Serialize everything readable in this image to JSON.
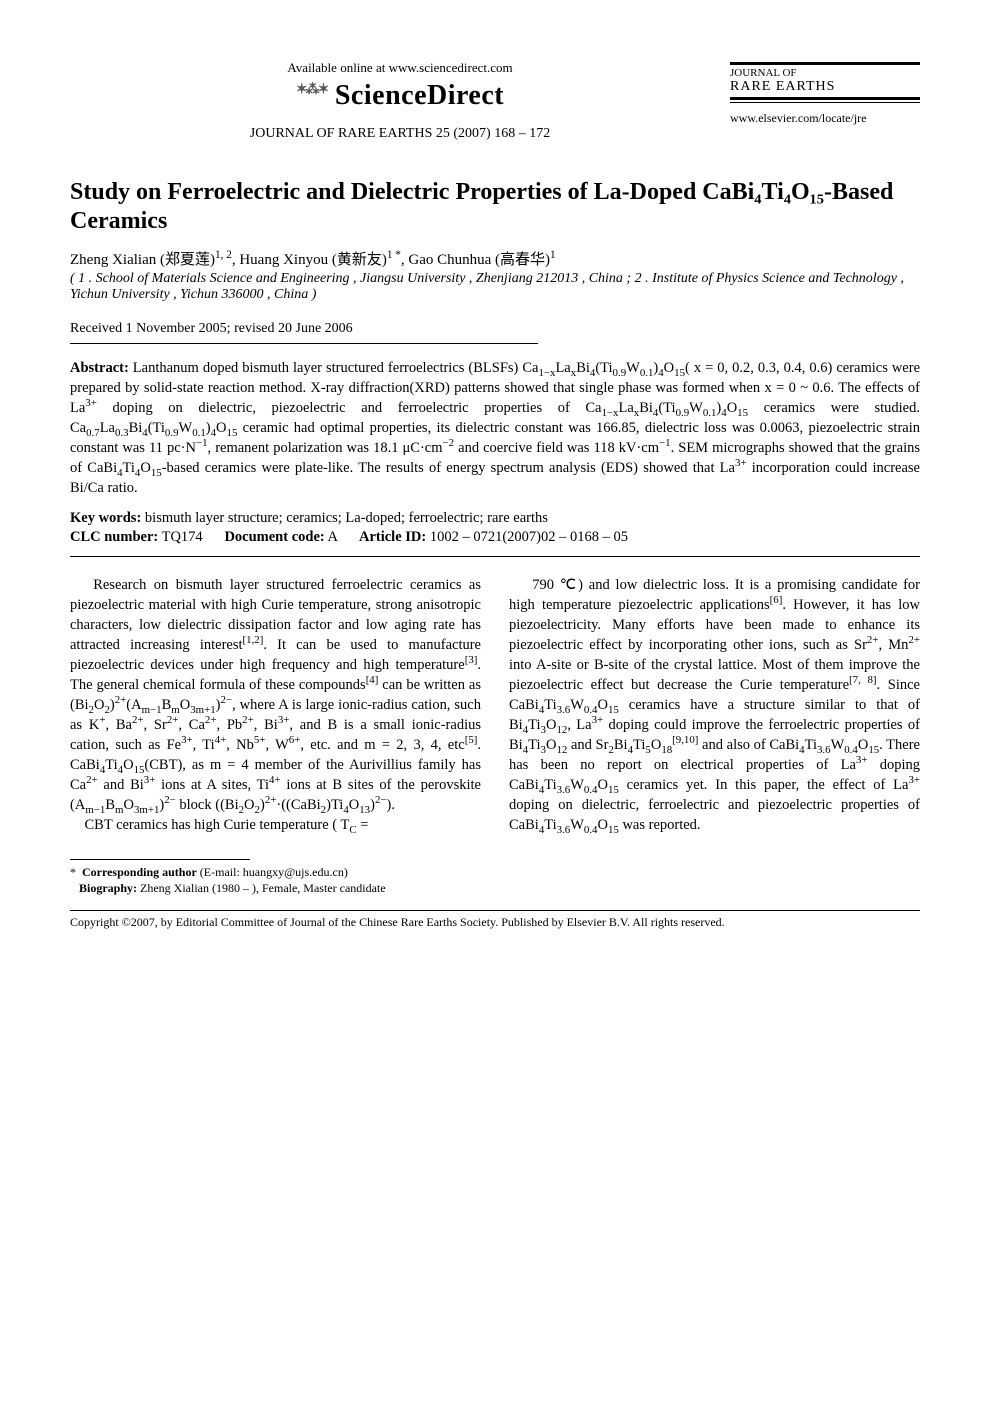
{
  "header": {
    "available_online": "Available online at www.sciencedirect.com",
    "sd_logo_text": "ScienceDirect",
    "journal_ref": "JOURNAL OF RARE EARTHS 25 (2007) 168 – 172",
    "journal_small_title": "JOURNAL OF",
    "journal_big": "RARE EARTHS",
    "elsevier_url": "www.elsevier.com/locate/jre"
  },
  "title": "Study on Ferroelectric and Dielectric Properties of La-Doped CaBi₄Ti₄O₁₅-Based Ceramics",
  "authors_html": "Zheng Xialian (郑夏莲)<sup>1, 2</sup>, Huang Xinyou (黄新友)<sup>1 *</sup>, Gao Chunhua (高春华)<sup>1</sup>",
  "affiliations_html": "( <i>1 . School of Materials Science and Engineering , Jiangsu University , Zhenjiang 212013 , China ; 2 . Institute of Physics Science and Technology , Yichun University , Yichun 336000 , China</i> )",
  "received": "Received 1 November 2005; revised 20 June 2006",
  "abstract_label": "Abstract:",
  "abstract_html": "Lanthanum doped bismuth layer structured ferroelectrics (BLSFs) Ca<sub>1−x</sub>La<sub>x</sub>Bi<sub>4</sub>(Ti<sub>0.9</sub>W<sub>0.1</sub>)<sub>4</sub>O<sub>15</sub>( x = 0, 0.2, 0.3, 0.4, 0.6) ceramics were prepared by solid-state reaction method. X-ray diffraction(XRD) patterns showed that single phase was formed when x = 0 ~ 0.6. The effects of La<sup>3+</sup> doping on dielectric, piezoelectric and ferroelectric properties of Ca<sub>1−x</sub>La<sub>x</sub>Bi<sub>4</sub>(Ti<sub>0.9</sub>W<sub>0.1</sub>)<sub>4</sub>O<sub>15</sub> ceramics were studied. Ca<sub>0.7</sub>La<sub>0.3</sub>Bi<sub>4</sub>(Ti<sub>0.9</sub>W<sub>0.1</sub>)<sub>4</sub>O<sub>15</sub> ceramic had optimal properties, its dielectric constant was 166.85, dielectric loss was 0.0063, piezoelectric strain constant was 11 pc·N<sup>−1</sup>, remanent polarization was 18.1 μC·cm<sup>−2</sup> and coercive field was 118 kV·cm<sup>−1</sup>. SEM micrographs showed that the grains of CaBi<sub>4</sub>Ti<sub>4</sub>O<sub>15</sub>-based ceramics were plate-like. The results of energy spectrum analysis (EDS) showed that La<sup>3+</sup> incorporation could increase Bi/Ca ratio.",
  "keywords_label": "Key words:",
  "keywords_text": "bismuth layer structure; ceramics; La-doped; ferroelectric; rare earths",
  "clc_label": "CLC number:",
  "clc_value": "TQ174",
  "doc_code_label": "Document code:",
  "doc_code_value": "A",
  "article_id_label": "Article ID:",
  "article_id_value": "1002 – 0721(2007)02 – 0168 – 05",
  "body_col1_html": "Research on bismuth layer structured ferroelectric ceramics as piezoelectric material with high Curie temperature, strong anisotropic characters, low dielectric dissipation factor and low aging rate has attracted increasing interest<sup>[1,2]</sup>. It can be used to manufacture piezoelectric devices under high frequency and high temperature<sup>[3]</sup>. The general chemical formula of these compounds<sup>[4]</sup> can be written as (Bi<sub>2</sub>O<sub>2</sub>)<sup>2+</sup>(A<sub>m−1</sub>B<sub>m</sub>O<sub>3m+1</sub>)<sup>2−</sup>, where A is large ionic-radius cation, such as K<sup>+</sup>, Ba<sup>2+</sup>, Sr<sup>2+</sup>, Ca<sup>2+</sup>, Pb<sup>2+</sup>, Bi<sup>3+</sup>, and B is a small ionic-radius cation, such as Fe<sup>3+</sup>, Ti<sup>4+</sup>, Nb<sup>5+</sup>, W<sup>6+</sup>, etc. and m = 2, 3, 4, etc<sup>[5]</sup>. CaBi<sub>4</sub>Ti<sub>4</sub>O<sub>15</sub>(CBT), as m = 4 member of the Aurivillius family has Ca<sup>2+</sup> and Bi<sup>3+</sup> ions at A sites, Ti<sup>4+</sup> ions at B sites of the perovskite (A<sub>m−1</sub>B<sub>m</sub>O<sub>3m+1</sub>)<sup>2−</sup> block ((Bi<sub>2</sub>O<sub>2</sub>)<sup>2+</sup>·((CaBi<sub>2</sub>)Ti<sub>4</sub>O<sub>13</sub>)<sup>2−</sup>).<br>&nbsp;&nbsp;&nbsp;&nbsp;CBT ceramics has high Curie temperature ( T<sub>C</sub> =",
  "body_col2_html": "790 ℃) and low dielectric loss. It is a promising candidate for high temperature piezoelectric applications<sup>[6]</sup>. However, it has low piezoelectricity. Many efforts have been made to enhance its piezoelectric effect by incorporating other ions, such as Sr<sup>2+</sup>, Mn<sup>2+</sup> into A-site or B-site of the crystal lattice. Most of them improve the piezoelectric effect but decrease the Curie temperature<sup>[7, 8]</sup>. Since CaBi<sub>4</sub>Ti<sub>3.6</sub>W<sub>0.4</sub>O<sub>15</sub> ceramics have a structure similar to that of Bi<sub>4</sub>Ti<sub>3</sub>O<sub>12</sub>, La<sup>3+</sup> doping could improve the ferroelectric properties of Bi<sub>4</sub>Ti<sub>3</sub>O<sub>12</sub> and Sr<sub>2</sub>Bi<sub>4</sub>Ti<sub>5</sub>O<sub>18</sub><sup>[9,10]</sup> and also of CaBi<sub>4</sub>Ti<sub>3.6</sub>W<sub>0.4</sub>O<sub>15</sub>. There has been no report on electrical properties of La<sup>3+</sup> doping CaBi<sub>4</sub>Ti<sub>3.6</sub>W<sub>0.4</sub>O<sub>15</sub> ceramics yet. In this paper, the effect of La<sup>3+</sup> doping on dielectric, ferroelectric and piezoelectric properties of CaBi<sub>4</sub>Ti<sub>3.6</sub>W<sub>0.4</sub>O<sub>15</sub> was reported.",
  "footnote": {
    "star": "*",
    "corr_label": "Corresponding author",
    "corr_text": "(E-mail: huangxy@ujs.edu.cn)",
    "bio_label": "Biography:",
    "bio_text": "Zheng Xialian (1980 – ), Female, Master candidate"
  },
  "copyright": "Copyright ©2007, by Editorial Committee of Journal of the Chinese Rare Earths Society. Published by Elsevier B.V. All rights reserved."
}
